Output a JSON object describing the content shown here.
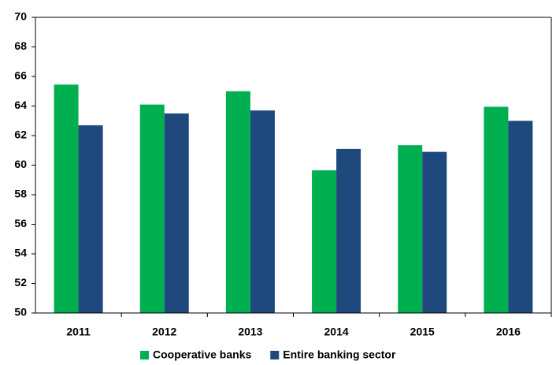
{
  "chart_data": {
    "type": "bar",
    "categories": [
      "2011",
      "2012",
      "2013",
      "2014",
      "2015",
      "2016"
    ],
    "series": [
      {
        "name": "Cooperative banks",
        "color": "#00b050",
        "values": [
          65.45,
          64.1,
          65.0,
          59.65,
          61.35,
          63.95
        ]
      },
      {
        "name": "Entire banking sector",
        "color": "#1f497d",
        "values": [
          62.7,
          63.5,
          63.7,
          61.1,
          60.9,
          63.0
        ]
      }
    ],
    "ylim": [
      50,
      70
    ],
    "yticks": [
      50,
      52,
      54,
      56,
      58,
      60,
      62,
      64,
      66,
      68,
      70
    ],
    "grid": false
  }
}
